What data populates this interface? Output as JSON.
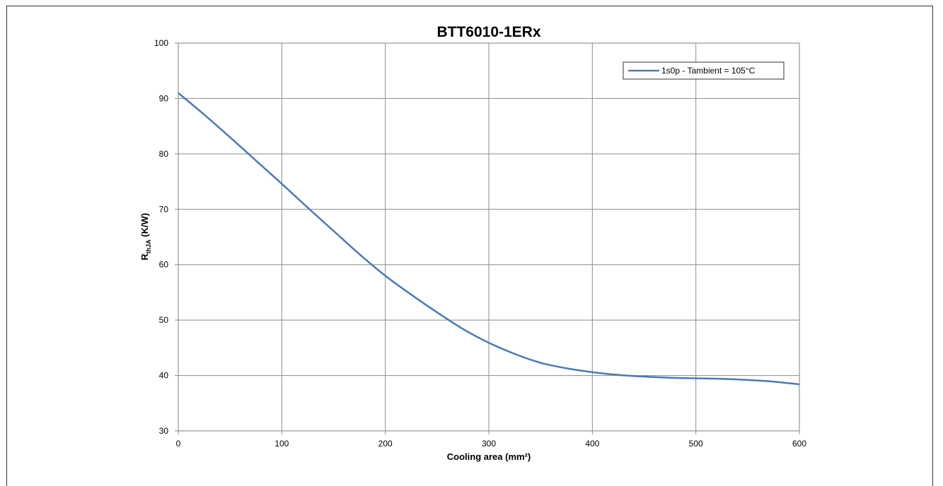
{
  "chart_data": {
    "type": "line",
    "title": "BTT6010-1ERx",
    "xlabel": "Cooling area (mm²)",
    "ylabel": {
      "main": "R",
      "subscript": "thJA",
      "unit": " (K/W)"
    },
    "xlim": [
      0,
      600
    ],
    "ylim": [
      30,
      100
    ],
    "x_ticks": [
      0,
      100,
      200,
      300,
      400,
      500,
      600
    ],
    "y_ticks": [
      30,
      40,
      50,
      60,
      70,
      80,
      90,
      100
    ],
    "grid": true,
    "legend_position": "top-right",
    "series": [
      {
        "name": "1s0p - Tambient = 105°C",
        "color": "#4a7ab5",
        "x": [
          0,
          25,
          50,
          75,
          100,
          125,
          150,
          175,
          200,
          225,
          250,
          275,
          300,
          325,
          350,
          375,
          400,
          425,
          450,
          475,
          500,
          525,
          550,
          575,
          600
        ],
        "y": [
          91,
          87.1,
          83.0,
          78.8,
          74.6,
          70.3,
          66.1,
          61.9,
          58.0,
          54.6,
          51.4,
          48.4,
          45.9,
          43.9,
          42.3,
          41.3,
          40.6,
          40.1,
          39.8,
          39.6,
          39.5,
          39.4,
          39.2,
          38.9,
          38.4
        ]
      }
    ]
  }
}
